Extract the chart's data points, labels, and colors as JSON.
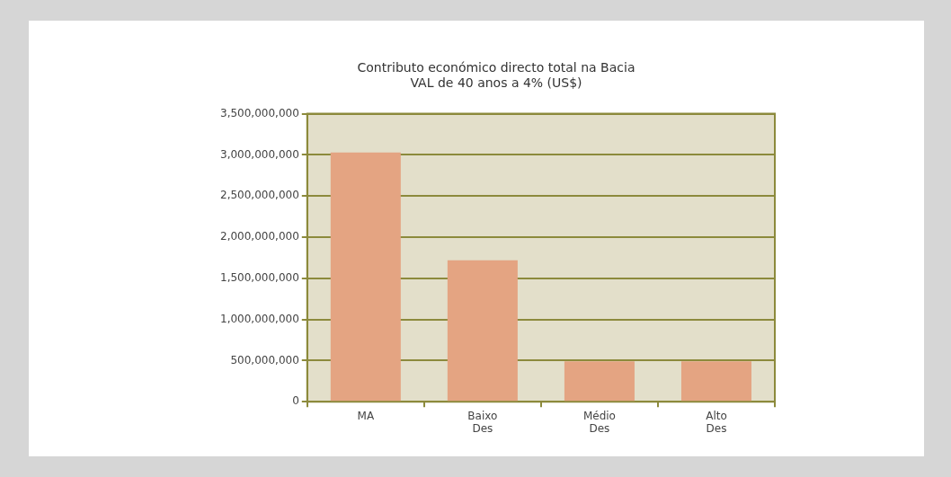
{
  "chart_data": {
    "type": "bar",
    "title": "Contributo económico directo total na Bacia",
    "subtitle": "VAL de 40 anos a 4% (US$)",
    "categories": [
      "MA",
      "Baixo Des",
      "Médio Des",
      "Alto Des"
    ],
    "values": [
      3030000000,
      1720000000,
      490000000,
      490000000
    ],
    "color": "#e4a482",
    "ylim": [
      0,
      3500000000
    ],
    "yticks": [
      0,
      {
        "value": 500000000,
        "label": "500,000,000"
      },
      {
        "value": 1000000000,
        "label": "1,000,000,000"
      },
      {
        "value": 1500000000,
        "label": "1,500,000,000"
      },
      {
        "value": 2000000000,
        "label": "2,000,000,000"
      },
      {
        "value": 2500000000,
        "label": "2,500,000,000"
      },
      {
        "value": 3000000000,
        "label": "3,000,000,000"
      },
      {
        "value": 3500000000,
        "label": "3,500,000,000"
      }
    ],
    "grid": "y"
  }
}
